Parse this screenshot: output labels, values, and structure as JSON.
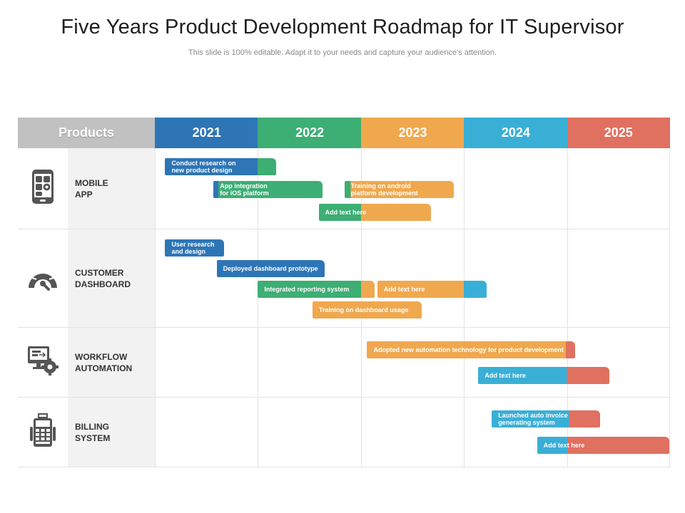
{
  "title": "Five Years Product Development Roadmap for IT Supervisor",
  "subtitle": "This slide is 100% editable. Adapt it to your needs and capture your audience's attention.",
  "colors": {
    "2021": "#2e75b6",
    "2022": "#3dae74",
    "2023": "#f0a84e",
    "2024": "#3aafd6",
    "2025": "#e07060",
    "products_header": "#c1c1c1"
  },
  "header": {
    "products_label": "Products",
    "years": [
      "2021",
      "2022",
      "2023",
      "2024",
      "2025"
    ]
  },
  "rows": [
    {
      "label": "MOBILE\nAPP",
      "icon": "mobile-app-icon",
      "bars": [
        {
          "text": "Conduct research on\nnew product design",
          "start": 2021.1,
          "end": 2022.18,
          "split": 2022.0
        },
        {
          "text": "App integration\nfor iOS platform",
          "start": 2021.57,
          "end": 2022.63,
          "split": 2021.62
        },
        {
          "text": "Training on android\nplatform development",
          "start": 2022.84,
          "end": 2023.9,
          "split": 2022.9
        },
        {
          "text": "Add text here",
          "start": 2022.59,
          "end": 2023.68,
          "split": 2023.0
        }
      ]
    },
    {
      "label": "CUSTOMER\nDASHBOARD",
      "icon": "customer-dashboard-icon",
      "bars": [
        {
          "text": "User research\nand design",
          "start": 2021.1,
          "end": 2021.67,
          "split": 2021.67
        },
        {
          "text": "Deployed dashboard prototype",
          "start": 2021.6,
          "end": 2022.65,
          "split": 2022.65
        },
        {
          "text": "Integrated reporting system",
          "start": 2022.0,
          "end": 2023.13,
          "split": 2023.0
        },
        {
          "text": "Add text here",
          "start": 2023.16,
          "end": 2024.22,
          "split": 2024.0
        },
        {
          "text": "Training on dashboard usage",
          "start": 2022.53,
          "end": 2023.59,
          "split": 2022.53
        }
      ]
    },
    {
      "label": "WORKFLOW\nAUTOMATION",
      "icon": "workflow-automation-icon",
      "bars": [
        {
          "text": "Adopted new automation technology for product development",
          "start": 2023.06,
          "end": 2025.08,
          "split": 2024.99
        },
        {
          "text": "Add text here",
          "start": 2024.14,
          "end": 2025.41,
          "split": 2025.0
        }
      ]
    },
    {
      "label": "BILLING\nSYSTEM",
      "icon": "billing-system-icon",
      "bars": [
        {
          "text": "Launched auto invoice\ngenerating system",
          "start": 2024.27,
          "end": 2025.32,
          "split": 2025.02
        },
        {
          "text": "Add text here",
          "start": 2024.71,
          "end": 2025.99,
          "split": 2025.0
        }
      ]
    }
  ]
}
